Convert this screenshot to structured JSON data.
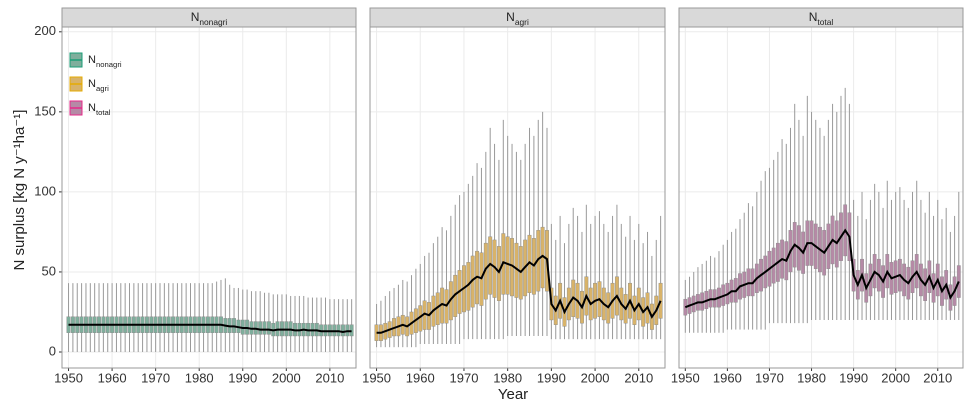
{
  "chart_data": [
    {
      "type": "boxplot",
      "title": {
        "base": "N",
        "sub": "nonagri"
      },
      "color": "#1b9e77",
      "box_fill": "#7fae9c",
      "ylabel": "N surplus [kg N y⁻¹ha⁻¹]",
      "legend": "top-left",
      "xlim": [
        1948.5,
        2016
      ],
      "ylim": [
        -10,
        203
      ],
      "xticks": [
        1950,
        1960,
        1970,
        1980,
        1990,
        2000,
        2010
      ],
      "yticks": [
        0,
        50,
        100,
        150,
        200
      ],
      "grid": true,
      "x": [
        1950,
        1951,
        1952,
        1953,
        1954,
        1955,
        1956,
        1957,
        1958,
        1959,
        1960,
        1961,
        1962,
        1963,
        1964,
        1965,
        1966,
        1967,
        1968,
        1969,
        1970,
        1971,
        1972,
        1973,
        1974,
        1975,
        1976,
        1977,
        1978,
        1979,
        1980,
        1981,
        1982,
        1983,
        1984,
        1985,
        1986,
        1987,
        1988,
        1989,
        1990,
        1991,
        1992,
        1993,
        1994,
        1995,
        1996,
        1997,
        1998,
        1999,
        2000,
        2001,
        2002,
        2003,
        2004,
        2005,
        2006,
        2007,
        2008,
        2009,
        2010,
        2011,
        2012,
        2013,
        2014,
        2015
      ],
      "median": [
        17,
        17,
        17,
        17,
        17,
        17,
        17,
        17,
        17,
        17,
        17,
        17,
        17,
        17,
        17,
        17,
        17,
        17,
        17,
        17,
        17,
        17,
        17,
        17,
        17,
        17,
        17,
        17,
        17,
        17,
        17,
        17,
        17,
        17,
        17,
        17,
        16.5,
        16,
        16,
        15.5,
        15,
        15,
        14.5,
        14.5,
        14,
        14,
        14,
        13.5,
        14,
        14,
        14,
        14,
        13.5,
        13.5,
        14,
        13.5,
        13.5,
        13.5,
        13,
        13,
        13,
        13,
        13,
        12.5,
        13,
        13
      ],
      "q1": [
        12,
        12,
        12,
        12,
        12,
        12,
        12,
        12,
        12,
        12,
        12,
        12,
        12,
        12,
        12,
        12,
        12,
        12,
        12,
        12,
        12,
        12,
        12,
        12,
        12,
        12,
        12,
        12,
        12,
        12,
        12,
        12,
        12,
        12,
        12,
        12,
        12,
        12,
        12,
        12,
        11,
        11,
        11,
        11,
        11,
        11,
        11,
        10,
        10,
        10,
        10,
        10,
        10,
        10,
        10,
        10,
        10,
        10,
        10,
        10,
        10,
        10,
        10,
        10,
        10,
        10
      ],
      "q3": [
        22,
        22,
        22,
        22,
        22,
        22,
        22,
        22,
        22,
        22,
        22,
        22,
        22,
        22,
        22,
        22,
        22,
        22,
        22,
        22,
        22,
        22,
        22,
        22,
        22,
        22,
        22,
        22,
        22,
        22,
        22,
        22,
        22,
        22,
        22,
        22,
        21,
        21,
        21,
        20,
        20,
        20,
        19,
        19,
        19,
        19,
        19,
        18,
        19,
        19,
        19,
        19,
        18,
        18,
        18,
        18,
        18,
        18,
        17,
        17,
        17,
        17,
        17,
        17,
        17,
        17
      ],
      "lower": [
        0,
        0,
        0,
        0,
        0,
        0,
        0,
        0,
        0,
        0,
        0,
        0,
        0,
        0,
        0,
        0,
        0,
        0,
        0,
        0,
        0,
        0,
        0,
        0,
        0,
        0,
        0,
        0,
        0,
        0,
        0,
        0,
        0,
        0,
        0,
        0,
        0,
        0,
        0,
        0,
        0,
        0,
        0,
        0,
        0,
        0,
        0,
        0,
        0,
        0,
        0,
        0,
        0,
        0,
        0,
        0,
        0,
        0,
        0,
        0,
        0,
        0,
        0,
        0,
        0,
        0
      ],
      "upper": [
        43,
        43,
        43,
        43,
        43,
        43,
        43,
        43,
        43,
        43,
        43,
        43,
        43,
        43,
        43,
        43,
        43,
        43,
        43,
        43,
        43,
        43,
        43,
        43,
        43,
        43,
        43,
        43,
        43,
        43,
        43,
        43,
        43,
        43,
        44,
        45,
        46,
        42,
        40,
        40,
        39,
        39,
        38,
        38,
        38,
        37,
        37,
        36,
        36,
        36,
        36,
        35,
        35,
        35,
        35,
        34,
        34,
        34,
        34,
        34,
        33,
        33,
        33,
        33,
        33,
        33
      ]
    },
    {
      "type": "boxplot",
      "title": {
        "base": "N",
        "sub": "agri"
      },
      "color": "#e6ab02",
      "box_fill": "#d8b36a",
      "xlabel": "Year",
      "xlim": [
        1948.5,
        2016
      ],
      "ylim": [
        -10,
        203
      ],
      "xticks": [
        1950,
        1960,
        1970,
        1980,
        1990,
        2000,
        2010
      ],
      "yticks": [
        0,
        50,
        100,
        150,
        200
      ],
      "grid": true,
      "x": [
        1950,
        1951,
        1952,
        1953,
        1954,
        1955,
        1956,
        1957,
        1958,
        1959,
        1960,
        1961,
        1962,
        1963,
        1964,
        1965,
        1966,
        1967,
        1968,
        1969,
        1970,
        1971,
        1972,
        1973,
        1974,
        1975,
        1976,
        1977,
        1978,
        1979,
        1980,
        1981,
        1982,
        1983,
        1984,
        1985,
        1986,
        1987,
        1988,
        1989,
        1990,
        1991,
        1992,
        1993,
        1994,
        1995,
        1996,
        1997,
        1998,
        1999,
        2000,
        2001,
        2002,
        2003,
        2004,
        2005,
        2006,
        2007,
        2008,
        2009,
        2010,
        2011,
        2012,
        2013,
        2014,
        2015
      ],
      "median": [
        12,
        12,
        13,
        14,
        15,
        16,
        17,
        16,
        18,
        20,
        22,
        24,
        23,
        26,
        28,
        30,
        29,
        33,
        36,
        38,
        40,
        42,
        45,
        47,
        46,
        52,
        55,
        53,
        50,
        56,
        55,
        54,
        52,
        50,
        53,
        56,
        54,
        58,
        60,
        58,
        30,
        26,
        32,
        25,
        30,
        34,
        32,
        28,
        35,
        30,
        32,
        33,
        30,
        28,
        32,
        35,
        30,
        27,
        32,
        26,
        30,
        25,
        28,
        22,
        26,
        32
      ],
      "q1": [
        7,
        7,
        8,
        9,
        10,
        10,
        11,
        10,
        11,
        12,
        13,
        14,
        14,
        16,
        17,
        18,
        18,
        20,
        22,
        24,
        25,
        26,
        28,
        30,
        29,
        33,
        36,
        34,
        32,
        36,
        36,
        35,
        34,
        33,
        35,
        37,
        36,
        38,
        40,
        38,
        20,
        17,
        21,
        16,
        20,
        22,
        21,
        18,
        23,
        20,
        21,
        22,
        20,
        18,
        21,
        23,
        20,
        18,
        21,
        17,
        20,
        16,
        18,
        14,
        17,
        21
      ],
      "q3": [
        17,
        17,
        18,
        19,
        21,
        22,
        23,
        22,
        25,
        27,
        29,
        32,
        31,
        35,
        37,
        40,
        39,
        44,
        48,
        51,
        54,
        56,
        60,
        63,
        62,
        68,
        72,
        70,
        66,
        74,
        72,
        71,
        68,
        66,
        70,
        73,
        71,
        76,
        78,
        76,
        40,
        35,
        43,
        34,
        40,
        45,
        43,
        38,
        47,
        40,
        43,
        44,
        40,
        37,
        43,
        47,
        40,
        36,
        43,
        35,
        40,
        34,
        37,
        30,
        35,
        43
      ],
      "lower": [
        3,
        3,
        3,
        3,
        3,
        3,
        3,
        3,
        3,
        3,
        5,
        5,
        5,
        5,
        5,
        5,
        5,
        5,
        5,
        5,
        8,
        8,
        8,
        8,
        8,
        8,
        8,
        8,
        8,
        8,
        10,
        10,
        10,
        10,
        10,
        10,
        10,
        10,
        10,
        10,
        8,
        8,
        8,
        8,
        8,
        8,
        8,
        8,
        8,
        8,
        8,
        8,
        8,
        8,
        8,
        8,
        8,
        8,
        8,
        8,
        8,
        8,
        8,
        8,
        8,
        8
      ],
      "upper": [
        30,
        32,
        35,
        38,
        40,
        42,
        45,
        44,
        48,
        52,
        55,
        60,
        62,
        68,
        72,
        78,
        76,
        85,
        92,
        98,
        100,
        105,
        110,
        118,
        115,
        125,
        140,
        130,
        120,
        145,
        135,
        130,
        125,
        120,
        130,
        140,
        135,
        145,
        150,
        140,
        80,
        70,
        85,
        68,
        80,
        90,
        85,
        75,
        92,
        80,
        85,
        88,
        80,
        75,
        85,
        92,
        80,
        72,
        85,
        70,
        80,
        68,
        75,
        60,
        70,
        85
      ]
    },
    {
      "type": "boxplot",
      "title": {
        "base": "N",
        "sub": "total"
      },
      "color": "#e7298a",
      "box_fill": "#b58aa6",
      "xlim": [
        1948.5,
        2016
      ],
      "ylim": [
        -10,
        203
      ],
      "xticks": [
        1950,
        1960,
        1970,
        1980,
        1990,
        2000,
        2010
      ],
      "yticks": [
        0,
        50,
        100,
        150,
        200
      ],
      "grid": true,
      "x": [
        1950,
        1951,
        1952,
        1953,
        1954,
        1955,
        1956,
        1957,
        1958,
        1959,
        1960,
        1961,
        1962,
        1963,
        1964,
        1965,
        1966,
        1967,
        1968,
        1969,
        1970,
        1971,
        1972,
        1973,
        1974,
        1975,
        1976,
        1977,
        1978,
        1979,
        1980,
        1981,
        1982,
        1983,
        1984,
        1985,
        1986,
        1987,
        1988,
        1989,
        1990,
        1991,
        1992,
        1993,
        1994,
        1995,
        1996,
        1997,
        1998,
        1999,
        2000,
        2001,
        2002,
        2003,
        2004,
        2005,
        2006,
        2007,
        2008,
        2009,
        2010,
        2011,
        2012,
        2013,
        2014,
        2015
      ],
      "median": [
        28,
        29,
        30,
        31,
        31,
        32,
        33,
        33,
        34,
        35,
        36,
        38,
        38,
        41,
        42,
        43,
        43,
        46,
        48,
        50,
        52,
        54,
        56,
        58,
        57,
        63,
        67,
        65,
        62,
        68,
        68,
        66,
        64,
        62,
        66,
        70,
        68,
        72,
        76,
        72,
        48,
        42,
        48,
        40,
        45,
        50,
        48,
        44,
        50,
        46,
        47,
        48,
        45,
        43,
        47,
        50,
        45,
        42,
        47,
        40,
        45,
        38,
        42,
        34,
        38,
        44
      ],
      "q1": [
        23,
        24,
        25,
        26,
        26,
        27,
        28,
        28,
        28,
        29,
        30,
        31,
        31,
        33,
        34,
        35,
        35,
        37,
        38,
        40,
        41,
        43,
        44,
        46,
        45,
        50,
        53,
        51,
        49,
        54,
        54,
        52,
        50,
        48,
        52,
        55,
        53,
        57,
        60,
        57,
        38,
        33,
        38,
        31,
        35,
        40,
        38,
        34,
        40,
        36,
        37,
        38,
        35,
        33,
        37,
        40,
        35,
        32,
        37,
        31,
        35,
        29,
        33,
        26,
        29,
        34
      ],
      "q3": [
        33,
        34,
        35,
        36,
        37,
        38,
        39,
        39,
        40,
        42,
        43,
        45,
        46,
        49,
        50,
        52,
        52,
        55,
        58,
        60,
        63,
        65,
        68,
        70,
        69,
        76,
        81,
        79,
        75,
        82,
        82,
        80,
        78,
        76,
        80,
        85,
        82,
        87,
        92,
        87,
        58,
        51,
        58,
        49,
        55,
        61,
        58,
        54,
        61,
        56,
        57,
        58,
        55,
        53,
        57,
        61,
        55,
        52,
        57,
        49,
        55,
        47,
        51,
        42,
        47,
        54
      ],
      "lower": [
        12,
        12,
        12,
        12,
        12,
        12,
        12,
        12,
        12,
        12,
        14,
        14,
        14,
        14,
        14,
        14,
        14,
        14,
        14,
        14,
        18,
        18,
        18,
        18,
        18,
        18,
        18,
        18,
        18,
        18,
        20,
        20,
        20,
        20,
        20,
        20,
        20,
        20,
        20,
        20,
        20,
        20,
        20,
        20,
        20,
        20,
        20,
        20,
        20,
        20,
        20,
        20,
        20,
        20,
        20,
        20,
        20,
        20,
        20,
        20,
        20,
        20,
        20,
        20,
        20,
        20
      ],
      "upper": [
        45,
        47,
        50,
        53,
        55,
        57,
        60,
        59,
        63,
        67,
        70,
        75,
        77,
        83,
        87,
        93,
        91,
        100,
        107,
        113,
        115,
        120,
        125,
        133,
        130,
        140,
        155,
        145,
        135,
        160,
        150,
        145,
        140,
        135,
        145,
        155,
        150,
        160,
        165,
        155,
        95,
        85,
        100,
        83,
        95,
        105,
        100,
        90,
        107,
        95,
        100,
        103,
        95,
        90,
        100,
        107,
        95,
        87,
        100,
        85,
        95,
        83,
        90,
        75,
        85,
        100
      ]
    }
  ]
}
